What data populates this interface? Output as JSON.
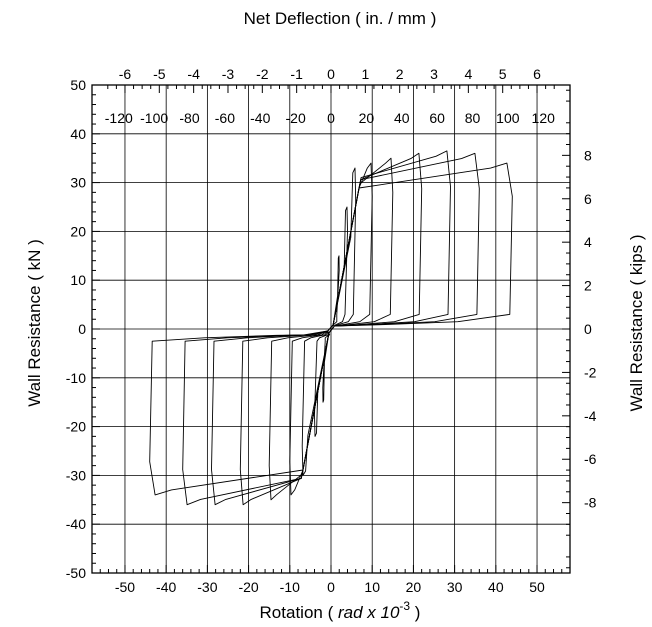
{
  "chart_data": {
    "type": "line",
    "title": "",
    "axes": {
      "bottom": {
        "label": "Rotation ( rad x 10-3 )",
        "label_main": "Rotation ( ",
        "label_unit_pre": "rad x 10",
        "label_exp": "-3",
        "label_post": " )",
        "range": [
          -58,
          58
        ],
        "ticks": [
          -50,
          -40,
          -30,
          -20,
          -10,
          0,
          10,
          20,
          30,
          40,
          50
        ],
        "tick_labels": [
          "-50",
          "-40",
          "-30",
          "-20",
          "-10",
          "0",
          "10",
          "20",
          "30",
          "40",
          "50"
        ]
      },
      "top_inches": {
        "label": "Net Deflection ( in. / mm )",
        "ticks": [
          -6,
          -5,
          -4,
          -3,
          -2,
          -1,
          0,
          1,
          2,
          3,
          4,
          5,
          6
        ],
        "tick_labels": [
          "-6",
          "-5",
          "-4",
          "-3",
          "-2",
          "-1",
          "0",
          "1",
          "2",
          "3",
          "4",
          "5",
          "6"
        ]
      },
      "top_mm": {
        "ticks": [
          -120,
          -100,
          -80,
          -60,
          -40,
          -20,
          0,
          20,
          40,
          60,
          80,
          100,
          120
        ],
        "tick_labels": [
          "-120",
          "-100",
          "-80",
          "-60",
          "-40",
          "-20",
          "0",
          "20",
          "40",
          "60",
          "80",
          "100",
          "120"
        ]
      },
      "left": {
        "label": "Wall Resistance ( kN )",
        "range": [
          -50,
          50
        ],
        "ticks": [
          -50,
          -40,
          -30,
          -20,
          -10,
          0,
          10,
          20,
          30,
          40,
          50
        ],
        "tick_labels": [
          "-50",
          "-40",
          "-30",
          "-20",
          "-10",
          "0",
          "10",
          "20",
          "30",
          "40",
          "50"
        ]
      },
      "right": {
        "label": "Wall Resistance ( kips )",
        "ticks": [
          -8,
          -6,
          -4,
          -2,
          0,
          2,
          4,
          6,
          8
        ],
        "tick_labels": [
          "-8",
          "-6",
          "-4",
          "-2",
          "0",
          "2",
          "4",
          "6",
          "8"
        ]
      }
    },
    "grid": true,
    "legend": "none",
    "line_color": "#000000",
    "hysteresis_cycles": [
      {
        "max_rotation": 2,
        "peak_load": 15,
        "min_rotation": -2,
        "min_load": -15
      },
      {
        "max_rotation": 4,
        "peak_load": 25,
        "min_rotation": -4,
        "min_load": -22
      },
      {
        "max_rotation": 6,
        "peak_load": 33,
        "min_rotation": -7,
        "min_load": -30
      },
      {
        "max_rotation": 10,
        "peak_load": 34,
        "min_rotation": -10,
        "min_load": -34
      },
      {
        "max_rotation": 15,
        "peak_load": 35,
        "min_rotation": -15,
        "min_load": -35
      },
      {
        "max_rotation": 22,
        "peak_load": 36,
        "min_rotation": -22,
        "min_load": -36
      },
      {
        "max_rotation": 29,
        "peak_load": 36.5,
        "min_rotation": -29,
        "min_load": -36
      },
      {
        "max_rotation": 36,
        "peak_load": 36,
        "min_rotation": -36,
        "min_load": -36
      },
      {
        "max_rotation": 44,
        "peak_load": 34,
        "min_rotation": -44,
        "min_load": -34
      }
    ]
  }
}
